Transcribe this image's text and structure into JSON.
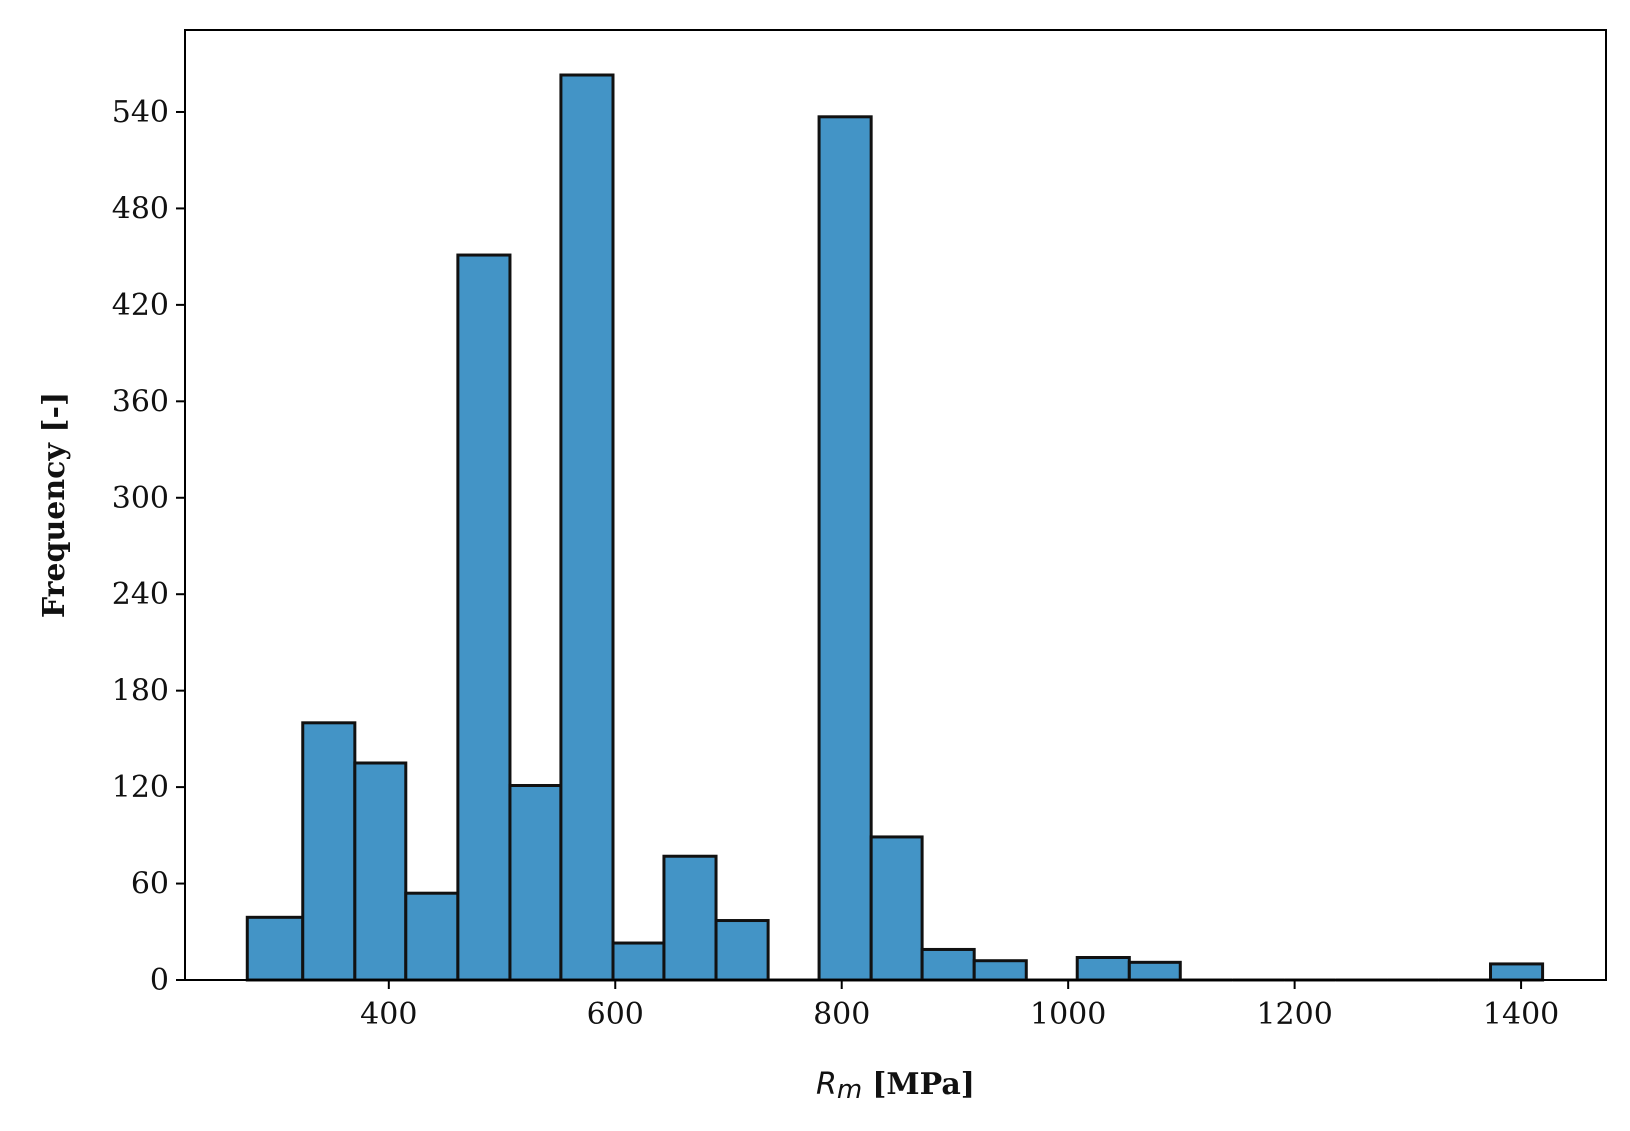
{
  "chart_data": {
    "type": "bar",
    "subtype": "histogram",
    "bins": [
      {
        "x0": 275,
        "x1": 324,
        "count": 39
      },
      {
        "x0": 324,
        "x1": 370,
        "count": 160
      },
      {
        "x0": 370,
        "x1": 415,
        "count": 135
      },
      {
        "x0": 415,
        "x1": 461,
        "count": 54
      },
      {
        "x0": 461,
        "x1": 507,
        "count": 451
      },
      {
        "x0": 507,
        "x1": 552,
        "count": 121
      },
      {
        "x0": 552,
        "x1": 598,
        "count": 563
      },
      {
        "x0": 598,
        "x1": 643,
        "count": 23
      },
      {
        "x0": 643,
        "x1": 689,
        "count": 77
      },
      {
        "x0": 689,
        "x1": 735,
        "count": 37
      },
      {
        "x0": 735,
        "x1": 780,
        "count": 0
      },
      {
        "x0": 780,
        "x1": 826,
        "count": 537
      },
      {
        "x0": 826,
        "x1": 871,
        "count": 89
      },
      {
        "x0": 871,
        "x1": 917,
        "count": 19
      },
      {
        "x0": 917,
        "x1": 963,
        "count": 12
      },
      {
        "x0": 963,
        "x1": 1008,
        "count": 0
      },
      {
        "x0": 1008,
        "x1": 1054,
        "count": 14
      },
      {
        "x0": 1054,
        "x1": 1099,
        "count": 11
      },
      {
        "x0": 1099,
        "x1": 1145,
        "count": 0
      },
      {
        "x0": 1145,
        "x1": 1191,
        "count": 0
      },
      {
        "x0": 1191,
        "x1": 1236,
        "count": 0
      },
      {
        "x0": 1236,
        "x1": 1282,
        "count": 0
      },
      {
        "x0": 1282,
        "x1": 1327,
        "count": 0
      },
      {
        "x0": 1327,
        "x1": 1373,
        "count": 0
      },
      {
        "x0": 1373,
        "x1": 1419,
        "count": 10
      }
    ],
    "title": "",
    "xlabel": {
      "symbol": "R",
      "subscript": "m",
      "unit": "[MPa]"
    },
    "ylabel": "Frequency [-]",
    "xlim": [
      220,
      1475
    ],
    "ylim": [
      0,
      591
    ],
    "xticks": [
      400,
      600,
      800,
      1000,
      1200,
      1400
    ],
    "yticks": [
      0,
      60,
      120,
      180,
      240,
      300,
      360,
      420,
      480,
      540
    ],
    "grid": false,
    "legend": "none",
    "colors": {
      "bar_fill": "#4394c6",
      "bar_edge": "#111111",
      "axis": "#000000"
    }
  }
}
